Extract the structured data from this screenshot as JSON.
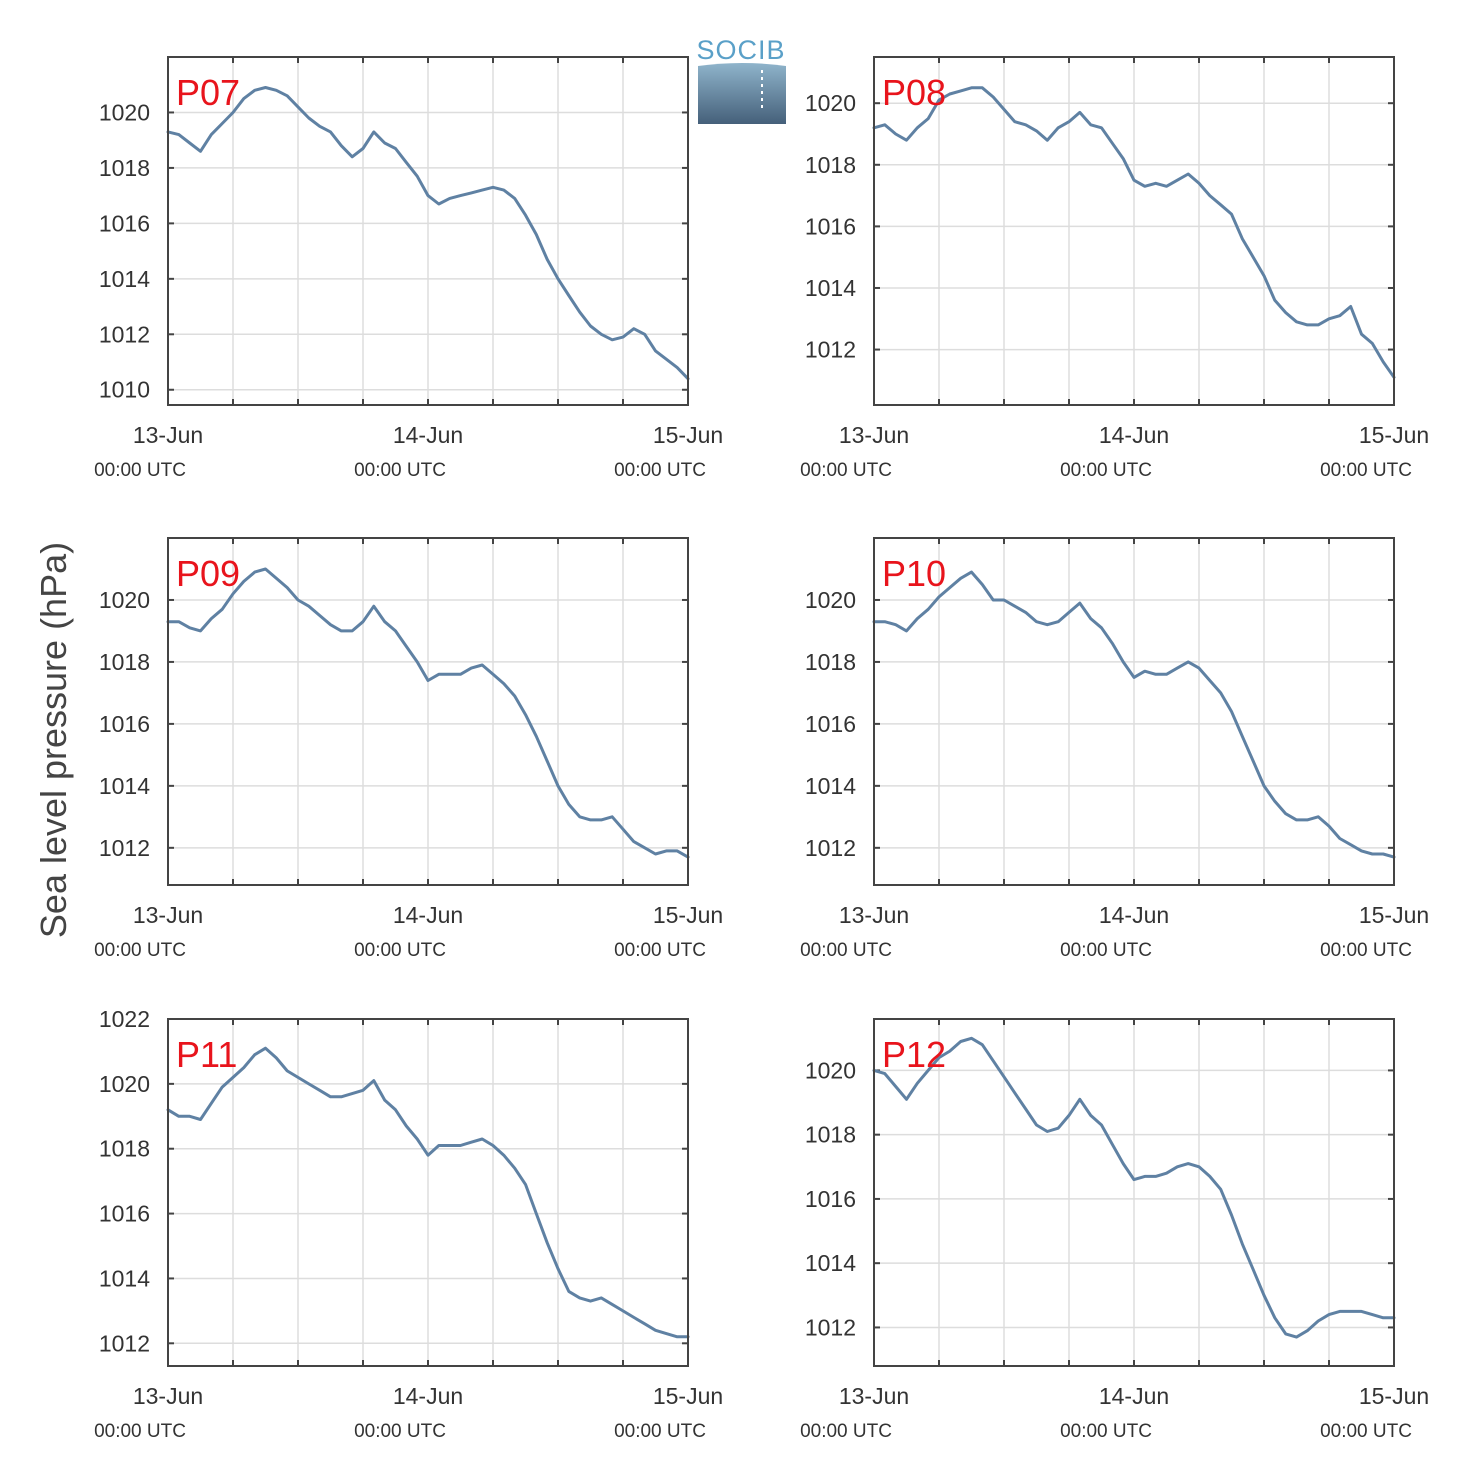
{
  "ylabel": "Sea level pressure (hPa)",
  "logo": {
    "text": "SOCIB",
    "colors": {
      "text": "#5aa0c8",
      "top": "#8fb4cb",
      "bottom": "#45607a"
    }
  },
  "colors": {
    "series": "#5f81a3",
    "station_label": "#e8141c"
  },
  "x_axis": {
    "domain": [
      0,
      48
    ],
    "units": "hours since 13-Jun 00:00 UTC",
    "major_ticks": [
      0,
      24,
      48
    ],
    "major_labels": [
      {
        "date": "13-Jun",
        "time": "00:00 UTC"
      },
      {
        "date": "14-Jun",
        "time": "00:00 UTC"
      },
      {
        "date": "15-Jun",
        "time": "00:00 UTC"
      }
    ],
    "minor_ticks": [
      6,
      12,
      18,
      30,
      36,
      42
    ]
  },
  "chart_data": [
    {
      "type": "line",
      "station": "P07",
      "ylim": [
        1009.45,
        1022.0
      ],
      "yticks": [
        1010,
        1012,
        1014,
        1016,
        1018,
        1020
      ],
      "x": [
        0,
        1,
        2,
        3,
        4,
        5,
        6,
        7,
        8,
        9,
        10,
        11,
        12,
        13,
        14,
        15,
        16,
        17,
        18,
        19,
        20,
        21,
        22,
        23,
        24,
        25,
        26,
        27,
        28,
        29,
        30,
        31,
        32,
        33,
        34,
        35,
        36,
        37,
        38,
        39,
        40,
        41,
        42,
        43,
        44,
        45,
        46,
        47,
        48
      ],
      "y": [
        1019.3,
        1019.2,
        1018.9,
        1018.6,
        1019.2,
        1019.6,
        1020.0,
        1020.5,
        1020.8,
        1020.9,
        1020.8,
        1020.6,
        1020.2,
        1019.8,
        1019.5,
        1019.3,
        1018.8,
        1018.4,
        1018.7,
        1019.3,
        1018.9,
        1018.7,
        1018.2,
        1017.7,
        1017.0,
        1016.7,
        1016.9,
        1017.0,
        1017.1,
        1017.2,
        1017.3,
        1017.2,
        1016.9,
        1016.3,
        1015.6,
        1014.7,
        1014.0,
        1013.4,
        1012.8,
        1012.3,
        1012.0,
        1011.8,
        1011.9,
        1012.2,
        1012.0,
        1011.4,
        1011.1,
        1010.8,
        1010.4
      ]
    },
    {
      "type": "line",
      "station": "P08",
      "ylim": [
        1010.2,
        1021.5
      ],
      "yticks": [
        1012,
        1014,
        1016,
        1018,
        1020
      ],
      "x": [
        0,
        1,
        2,
        3,
        4,
        5,
        6,
        7,
        8,
        9,
        10,
        11,
        12,
        13,
        14,
        15,
        16,
        17,
        18,
        19,
        20,
        21,
        22,
        23,
        24,
        25,
        26,
        27,
        28,
        29,
        30,
        31,
        32,
        33,
        34,
        35,
        36,
        37,
        38,
        39,
        40,
        41,
        42,
        43,
        44,
        45,
        46,
        47,
        48
      ],
      "y": [
        1019.2,
        1019.3,
        1019.0,
        1018.8,
        1019.2,
        1019.5,
        1020.1,
        1020.3,
        1020.4,
        1020.5,
        1020.5,
        1020.2,
        1019.8,
        1019.4,
        1019.3,
        1019.1,
        1018.8,
        1019.2,
        1019.4,
        1019.7,
        1019.3,
        1019.2,
        1018.7,
        1018.2,
        1017.5,
        1017.3,
        1017.4,
        1017.3,
        1017.5,
        1017.7,
        1017.4,
        1017.0,
        1016.7,
        1016.4,
        1015.6,
        1015.0,
        1014.4,
        1013.6,
        1013.2,
        1012.9,
        1012.8,
        1012.8,
        1013.0,
        1013.1,
        1013.4,
        1012.5,
        1012.2,
        1011.6,
        1011.1
      ]
    },
    {
      "type": "line",
      "station": "P09",
      "ylim": [
        1010.8,
        1022.0
      ],
      "yticks": [
        1012,
        1014,
        1016,
        1018,
        1020
      ],
      "x": [
        0,
        1,
        2,
        3,
        4,
        5,
        6,
        7,
        8,
        9,
        10,
        11,
        12,
        13,
        14,
        15,
        16,
        17,
        18,
        19,
        20,
        21,
        22,
        23,
        24,
        25,
        26,
        27,
        28,
        29,
        30,
        31,
        32,
        33,
        34,
        35,
        36,
        37,
        38,
        39,
        40,
        41,
        42,
        43,
        44,
        45,
        46,
        47,
        48
      ],
      "y": [
        1019.3,
        1019.3,
        1019.1,
        1019.0,
        1019.4,
        1019.7,
        1020.2,
        1020.6,
        1020.9,
        1021.0,
        1020.7,
        1020.4,
        1020.0,
        1019.8,
        1019.5,
        1019.2,
        1019.0,
        1019.0,
        1019.3,
        1019.8,
        1019.3,
        1019.0,
        1018.5,
        1018.0,
        1017.4,
        1017.6,
        1017.6,
        1017.6,
        1017.8,
        1017.9,
        1017.6,
        1017.3,
        1016.9,
        1016.3,
        1015.6,
        1014.8,
        1014.0,
        1013.4,
        1013.0,
        1012.9,
        1012.9,
        1013.0,
        1012.6,
        1012.2,
        1012.0,
        1011.8,
        1011.9,
        1011.9,
        1011.7
      ]
    },
    {
      "type": "line",
      "station": "P10",
      "ylim": [
        1010.8,
        1022.0
      ],
      "yticks": [
        1012,
        1014,
        1016,
        1018,
        1020
      ],
      "x": [
        0,
        1,
        2,
        3,
        4,
        5,
        6,
        7,
        8,
        9,
        10,
        11,
        12,
        13,
        14,
        15,
        16,
        17,
        18,
        19,
        20,
        21,
        22,
        23,
        24,
        25,
        26,
        27,
        28,
        29,
        30,
        31,
        32,
        33,
        34,
        35,
        36,
        37,
        38,
        39,
        40,
        41,
        42,
        43,
        44,
        45,
        46,
        47,
        48
      ],
      "y": [
        1019.3,
        1019.3,
        1019.2,
        1019.0,
        1019.4,
        1019.7,
        1020.1,
        1020.4,
        1020.7,
        1020.9,
        1020.5,
        1020.0,
        1020.0,
        1019.8,
        1019.6,
        1019.3,
        1019.2,
        1019.3,
        1019.6,
        1019.9,
        1019.4,
        1019.1,
        1018.6,
        1018.0,
        1017.5,
        1017.7,
        1017.6,
        1017.6,
        1017.8,
        1018.0,
        1017.8,
        1017.4,
        1017.0,
        1016.4,
        1015.6,
        1014.8,
        1014.0,
        1013.5,
        1013.1,
        1012.9,
        1012.9,
        1013.0,
        1012.7,
        1012.3,
        1012.1,
        1011.9,
        1011.8,
        1011.8,
        1011.7
      ]
    },
    {
      "type": "line",
      "station": "P11",
      "ylim": [
        1011.3,
        1022.0
      ],
      "yticks": [
        1012,
        1014,
        1016,
        1018,
        1020,
        1022
      ],
      "x": [
        0,
        1,
        2,
        3,
        4,
        5,
        6,
        7,
        8,
        9,
        10,
        11,
        12,
        13,
        14,
        15,
        16,
        17,
        18,
        19,
        20,
        21,
        22,
        23,
        24,
        25,
        26,
        27,
        28,
        29,
        30,
        31,
        32,
        33,
        34,
        35,
        36,
        37,
        38,
        39,
        40,
        41,
        42,
        43,
        44,
        45,
        46,
        47,
        48
      ],
      "y": [
        1019.2,
        1019.0,
        1019.0,
        1018.9,
        1019.4,
        1019.9,
        1020.2,
        1020.5,
        1020.9,
        1021.1,
        1020.8,
        1020.4,
        1020.2,
        1020.0,
        1019.8,
        1019.6,
        1019.6,
        1019.7,
        1019.8,
        1020.1,
        1019.5,
        1019.2,
        1018.7,
        1018.3,
        1017.8,
        1018.1,
        1018.1,
        1018.1,
        1018.2,
        1018.3,
        1018.1,
        1017.8,
        1017.4,
        1016.9,
        1016.0,
        1015.1,
        1014.3,
        1013.6,
        1013.4,
        1013.3,
        1013.4,
        1013.2,
        1013.0,
        1012.8,
        1012.6,
        1012.4,
        1012.3,
        1012.2,
        1012.2
      ]
    },
    {
      "type": "line",
      "station": "P12",
      "ylim": [
        1010.8,
        1021.6
      ],
      "yticks": [
        1012,
        1014,
        1016,
        1018,
        1020
      ],
      "x": [
        0,
        1,
        2,
        3,
        4,
        5,
        6,
        7,
        8,
        9,
        10,
        11,
        12,
        13,
        14,
        15,
        16,
        17,
        18,
        19,
        20,
        21,
        22,
        23,
        24,
        25,
        26,
        27,
        28,
        29,
        30,
        31,
        32,
        33,
        34,
        35,
        36,
        37,
        38,
        39,
        40,
        41,
        42,
        43,
        44,
        45,
        46,
        47,
        48
      ],
      "y": [
        1020.0,
        1019.9,
        1019.5,
        1019.1,
        1019.6,
        1020.0,
        1020.4,
        1020.6,
        1020.9,
        1021.0,
        1020.8,
        1020.3,
        1019.8,
        1019.3,
        1018.8,
        1018.3,
        1018.1,
        1018.2,
        1018.6,
        1019.1,
        1018.6,
        1018.3,
        1017.7,
        1017.1,
        1016.6,
        1016.7,
        1016.7,
        1016.8,
        1017.0,
        1017.1,
        1017.0,
        1016.7,
        1016.3,
        1015.5,
        1014.6,
        1013.8,
        1013.0,
        1012.3,
        1011.8,
        1011.7,
        1011.9,
        1012.2,
        1012.4,
        1012.5,
        1012.5,
        1012.5,
        1012.4,
        1012.3,
        1012.3
      ]
    }
  ]
}
